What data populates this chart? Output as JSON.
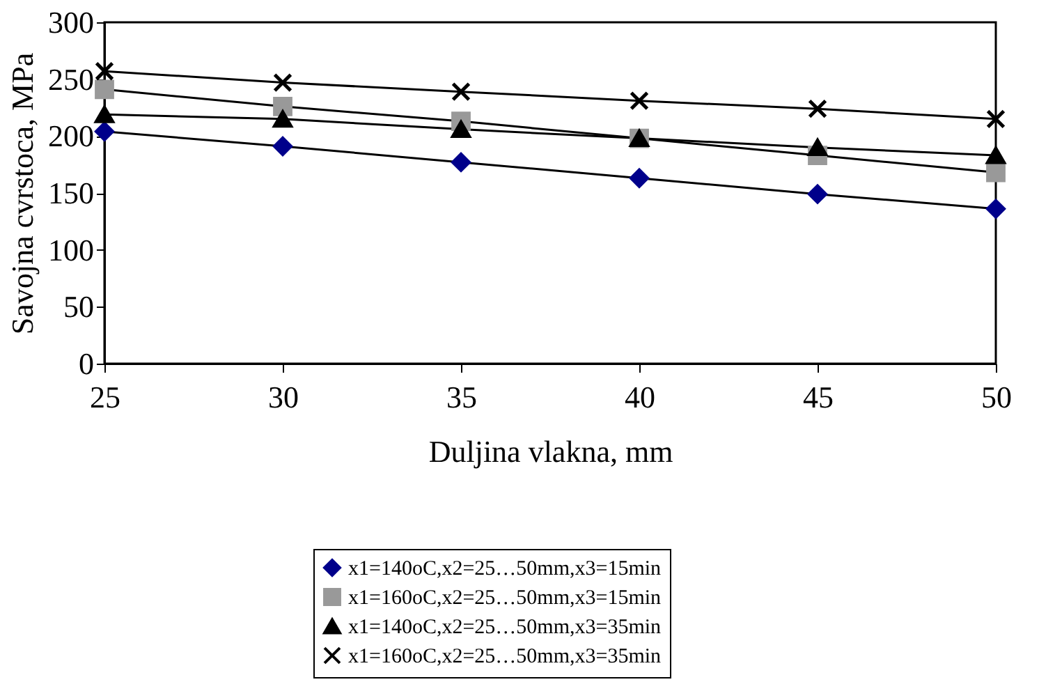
{
  "chart_data": {
    "type": "line",
    "xlabel": "Duljina vlakna, mm",
    "ylabel": "Savojna cvrstoca, MPa",
    "x": [
      25,
      30,
      35,
      40,
      45,
      50
    ],
    "xlim": [
      25,
      50
    ],
    "xticks": [
      25,
      30,
      35,
      40,
      45,
      50
    ],
    "ylim": [
      0,
      300
    ],
    "yticks": [
      0,
      50,
      100,
      150,
      200,
      250,
      300
    ],
    "grid": false,
    "legend": "bottom",
    "line_style": "solid",
    "series": [
      {
        "name": "x1=140oC,x2=25…50mm,x3=15min",
        "color": "#00008b",
        "marker": "diamond",
        "values": [
          204,
          191,
          177,
          163,
          149,
          136
        ]
      },
      {
        "name": "x1=160oC,x2=25…50mm,x3=15min",
        "color": "#999999",
        "marker": "square",
        "values": [
          241,
          226,
          213,
          198,
          183,
          168
        ]
      },
      {
        "name": "x1=140oC,x2=25…50mm,x3=35min",
        "color": "#000000",
        "marker": "triangle",
        "values": [
          219,
          215,
          206,
          198,
          190,
          183
        ]
      },
      {
        "name": "x1=160oC,x2=25…50mm,x3=35min",
        "color": "#000000",
        "marker": "cross",
        "values": [
          257,
          247,
          239,
          231,
          224,
          215
        ]
      }
    ]
  }
}
